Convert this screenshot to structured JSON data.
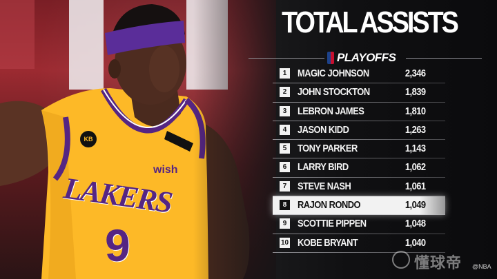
{
  "title": "TOTAL ASSISTS",
  "subtitle": "PLAYOFFS",
  "highlight_rank": "8",
  "leaders": [
    {
      "rank": "1",
      "name": "MAGIC JOHNSON",
      "value": "2,346"
    },
    {
      "rank": "2",
      "name": "JOHN STOCKTON",
      "value": "1,839"
    },
    {
      "rank": "3",
      "name": "LEBRON JAMES",
      "value": "1,810"
    },
    {
      "rank": "4",
      "name": "JASON KIDD",
      "value": "1,263"
    },
    {
      "rank": "5",
      "name": "TONY PARKER",
      "value": "1,143"
    },
    {
      "rank": "6",
      "name": "LARRY BIRD",
      "value": "1,062"
    },
    {
      "rank": "7",
      "name": "STEVE NASH",
      "value": "1,061"
    },
    {
      "rank": "8",
      "name": "RAJON RONDO",
      "value": "1,049"
    },
    {
      "rank": "9",
      "name": "SCOTTIE PIPPEN",
      "value": "1,048"
    },
    {
      "rank": "10",
      "name": "KOBE BRYANT",
      "value": "1,040"
    }
  ],
  "photo": {
    "jersey_team": "LAKERS",
    "jersey_number": "9",
    "sponsor": "wish",
    "patch": "KB"
  },
  "watermark": "懂球帝",
  "credit": "@NBA",
  "colors": {
    "jersey_gold": "#fdb927",
    "lakers_purple": "#552583",
    "headband": "#5a2d99",
    "highlight_row": "#f2f2f2",
    "text": "#f4f4f4"
  }
}
